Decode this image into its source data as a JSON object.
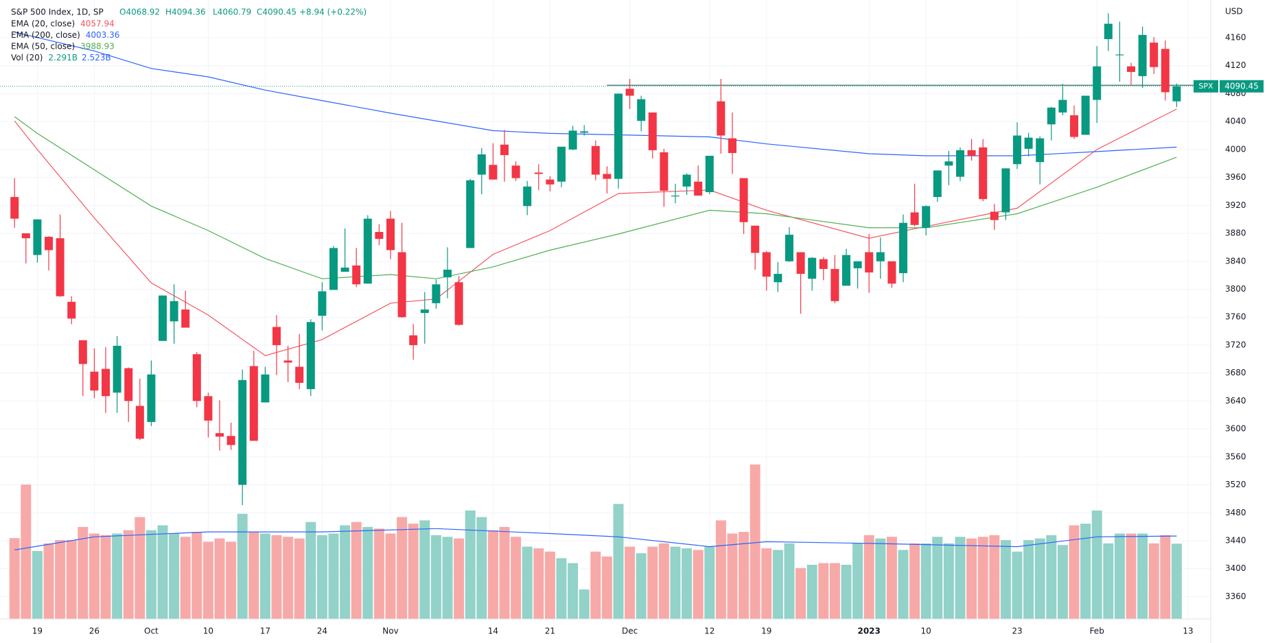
{
  "chart_data": {
    "type": "candlestick",
    "title": "S&P 500 Index, 1D, SP",
    "header_labels": [
      "O4068.92",
      "H4094.36",
      "L4060.79",
      "C4090.45",
      "+8.94 (+0.22%)"
    ],
    "currency": "USD",
    "symbol": "SPX",
    "up_color": "#089981",
    "down_color": "#f23645",
    "up_volume_color": "#92d2c8",
    "down_volume_color": "#f7a9a8",
    "grid": true,
    "ylim": [
      3328,
      4214
    ],
    "yticks": [
      3360,
      3400,
      3440,
      3480,
      3520,
      3560,
      3600,
      3640,
      3680,
      3720,
      3760,
      3800,
      3840,
      3880,
      3920,
      3960,
      4000,
      4040,
      4080,
      4120,
      4160
    ],
    "categories": [
      "Sep 15",
      "Sep 16",
      "Sep 19",
      "Sep 20",
      "Sep 21",
      "Sep 22",
      "Sep 23",
      "Sep 26",
      "Sep 27",
      "Sep 28",
      "Sep 29",
      "Sep 30",
      "Oct 3",
      "Oct 4",
      "Oct 5",
      "Oct 6",
      "Oct 7",
      "Oct 10",
      "Oct 11",
      "Oct 12",
      "Oct 13",
      "Oct 14",
      "Oct 17",
      "Oct 18",
      "Oct 19",
      "Oct 20",
      "Oct 21",
      "Oct 24",
      "Oct 25",
      "Oct 26",
      "Oct 27",
      "Oct 28",
      "Oct 31",
      "Nov 1",
      "Nov 2",
      "Nov 3",
      "Nov 4",
      "Nov 7",
      "Nov 8",
      "Nov 9",
      "Nov 10",
      "Nov 11",
      "Nov 14",
      "Nov 15",
      "Nov 16",
      "Nov 17",
      "Nov 18",
      "Nov 21",
      "Nov 22",
      "Nov 23",
      "Nov 25",
      "Nov 28",
      "Nov 29",
      "Nov 30",
      "Dec 1",
      "Dec 2",
      "Dec 5",
      "Dec 6",
      "Dec 7",
      "Dec 8",
      "Dec 9",
      "Dec 12",
      "Dec 13",
      "Dec 14",
      "Dec 15",
      "Dec 16",
      "Dec 19",
      "Dec 20",
      "Dec 21",
      "Dec 22",
      "Dec 23",
      "Dec 27",
      "Dec 28",
      "Dec 29",
      "Dec 30",
      "Jan 3",
      "Jan 4",
      "Jan 5",
      "Jan 6",
      "Jan 9",
      "Jan 10",
      "Jan 11",
      "Jan 12",
      "Jan 13",
      "Jan 17",
      "Jan 18",
      "Jan 19",
      "Jan 20",
      "Jan 23",
      "Jan 24",
      "Jan 25",
      "Jan 26",
      "Jan 27",
      "Jan 30",
      "Jan 31",
      "Feb 1",
      "Feb 2",
      "Feb 3",
      "Feb 6",
      "Feb 7",
      "Feb 8",
      "Feb 9",
      "Feb 10"
    ],
    "candles": [
      [
        3932,
        3959,
        3888,
        3901
      ],
      [
        3880,
        3880,
        3837,
        3873
      ],
      [
        3849,
        3900,
        3838,
        3900
      ],
      [
        3875,
        3876,
        3827,
        3856
      ],
      [
        3873,
        3907,
        3789,
        3790
      ],
      [
        3782,
        3790,
        3750,
        3758
      ],
      [
        3727,
        3727,
        3647,
        3693
      ],
      [
        3682,
        3715,
        3644,
        3655
      ],
      [
        3686,
        3717,
        3623,
        3647
      ],
      [
        3652,
        3733,
        3623,
        3719
      ],
      [
        3687,
        3688,
        3610,
        3640
      ],
      [
        3633,
        3672,
        3584,
        3586
      ],
      [
        3610,
        3698,
        3604,
        3678
      ],
      [
        3726,
        3791,
        3726,
        3791
      ],
      [
        3754,
        3807,
        3722,
        3783
      ],
      [
        3771,
        3798,
        3745,
        3745
      ],
      [
        3707,
        3710,
        3631,
        3640
      ],
      [
        3647,
        3652,
        3588,
        3612
      ],
      [
        3594,
        3641,
        3569,
        3589
      ],
      [
        3590,
        3609,
        3570,
        3577
      ],
      [
        3520,
        3685,
        3491,
        3670
      ],
      [
        3690,
        3712,
        3583,
        3583
      ],
      [
        3638,
        3689,
        3638,
        3678
      ],
      [
        3746,
        3763,
        3677,
        3720
      ],
      [
        3698,
        3719,
        3667,
        3695
      ],
      [
        3689,
        3736,
        3657,
        3666
      ],
      [
        3657,
        3757,
        3647,
        3753
      ],
      [
        3762,
        3810,
        3741,
        3797
      ],
      [
        3799,
        3862,
        3799,
        3859
      ],
      [
        3825,
        3887,
        3825,
        3831
      ],
      [
        3834,
        3859,
        3803,
        3807
      ],
      [
        3808,
        3906,
        3808,
        3901
      ],
      [
        3882,
        3893,
        3863,
        3872
      ],
      [
        3901,
        3912,
        3843,
        3856
      ],
      [
        3853,
        3895,
        3759,
        3760
      ],
      [
        3734,
        3750,
        3699,
        3720
      ],
      [
        3766,
        3796,
        3722,
        3771
      ],
      [
        3780,
        3814,
        3772,
        3807
      ],
      [
        3817,
        3860,
        3787,
        3828
      ],
      [
        3810,
        3819,
        3748,
        3749
      ],
      [
        3859,
        3958,
        3859,
        3956
      ],
      [
        3964,
        4002,
        3936,
        3993
      ],
      [
        3978,
        4009,
        3957,
        3957
      ],
      [
        4007,
        4028,
        3954,
        3992
      ],
      [
        3977,
        3983,
        3955,
        3959
      ],
      [
        3919,
        3955,
        3906,
        3947
      ],
      [
        3967,
        3979,
        3942,
        3965
      ],
      [
        3957,
        3962,
        3940,
        3950
      ],
      [
        3954,
        4003,
        3946,
        4004
      ],
      [
        4000,
        4034,
        3999,
        4027
      ],
      [
        4024,
        4035,
        4020,
        4026
      ],
      [
        4005,
        4013,
        3956,
        3964
      ],
      [
        3965,
        3976,
        3937,
        3958
      ],
      [
        3958,
        4080,
        3944,
        4080
      ],
      [
        4087,
        4101,
        4058,
        4077
      ],
      [
        4041,
        4077,
        4026,
        4072
      ],
      [
        4053,
        4053,
        3987,
        3999
      ],
      [
        3996,
        4001,
        3918,
        3941
      ],
      [
        3934,
        3951,
        3923,
        3934
      ],
      [
        3947,
        3966,
        3935,
        3964
      ],
      [
        3954,
        3977,
        3934,
        3934
      ],
      [
        3939,
        3991,
        3936,
        3991
      ],
      [
        4069,
        4101,
        3994,
        4020
      ],
      [
        4016,
        4053,
        3965,
        3995
      ],
      [
        3959,
        3959,
        3879,
        3896
      ],
      [
        3891,
        3891,
        3828,
        3852
      ],
      [
        3853,
        3855,
        3798,
        3818
      ],
      [
        3810,
        3839,
        3796,
        3822
      ],
      [
        3840,
        3889,
        3839,
        3878
      ],
      [
        3853,
        3853,
        3765,
        3822
      ],
      [
        3815,
        3846,
        3798,
        3845
      ],
      [
        3843,
        3846,
        3813,
        3829
      ],
      [
        3829,
        3849,
        3780,
        3783
      ],
      [
        3805,
        3858,
        3805,
        3849
      ],
      [
        3830,
        3840,
        3801,
        3840
      ],
      [
        3853,
        3879,
        3795,
        3824
      ],
      [
        3840,
        3874,
        3815,
        3853
      ],
      [
        3840,
        3840,
        3802,
        3808
      ],
      [
        3823,
        3907,
        3810,
        3895
      ],
      [
        3910,
        3951,
        3890,
        3892
      ],
      [
        3888,
        3920,
        3877,
        3919
      ],
      [
        3932,
        3970,
        3925,
        3970
      ],
      [
        3977,
        3998,
        3949,
        3983
      ],
      [
        3961,
        4003,
        3955,
        3999
      ],
      [
        3999,
        4015,
        3984,
        3991
      ],
      [
        4003,
        4015,
        3926,
        3929
      ],
      [
        3911,
        3922,
        3885,
        3899
      ],
      [
        3910,
        3973,
        3899,
        3973
      ],
      [
        3979,
        4039,
        3972,
        4020
      ],
      [
        4001,
        4024,
        3990,
        4017
      ],
      [
        3982,
        4019,
        3950,
        4016
      ],
      [
        4036,
        4061,
        4013,
        4060
      ],
      [
        4053,
        4094,
        4049,
        4071
      ],
      [
        4049,
        4063,
        4015,
        4018
      ],
      [
        4021,
        4077,
        4021,
        4077
      ],
      [
        4071,
        4148,
        4038,
        4119
      ],
      [
        4158,
        4195,
        4141,
        4180
      ],
      [
        4136,
        4183,
        4097,
        4136
      ],
      [
        4119,
        4124,
        4093,
        4111
      ],
      [
        4105,
        4176,
        4088,
        4164
      ],
      [
        4153,
        4161,
        4108,
        4118
      ],
      [
        4144,
        4156,
        4070,
        4082
      ],
      [
        4068.92,
        4094.36,
        4060.79,
        4090.45
      ]
    ],
    "volume": [
      2.46,
      4.09,
      2.07,
      2.3,
      2.4,
      2.4,
      2.8,
      2.6,
      2.55,
      2.6,
      2.7,
      3.1,
      2.7,
      2.85,
      2.6,
      2.5,
      2.65,
      2.35,
      2.45,
      2.35,
      3.2,
      2.65,
      2.6,
      2.55,
      2.5,
      2.45,
      2.95,
      2.55,
      2.6,
      2.85,
      2.95,
      2.8,
      2.75,
      2.6,
      3.1,
      2.9,
      3.0,
      2.55,
      2.5,
      2.45,
      3.3,
      3.1,
      2.7,
      2.8,
      2.5,
      2.2,
      2.15,
      2.05,
      1.85,
      1.7,
      0.9,
      2.05,
      1.9,
      3.5,
      2.2,
      2.0,
      2.2,
      2.3,
      2.2,
      2.15,
      2.1,
      2.2,
      3.0,
      2.6,
      2.65,
      4.7,
      2.15,
      2.1,
      2.3,
      1.55,
      1.65,
      1.7,
      1.7,
      1.65,
      2.3,
      2.55,
      2.45,
      2.5,
      2.1,
      2.3,
      2.3,
      2.5,
      2.3,
      2.5,
      2.45,
      2.5,
      2.55,
      2.4,
      2.05,
      2.4,
      2.45,
      2.55,
      2.25,
      2.85,
      2.9,
      3.3,
      2.3,
      2.6,
      2.6,
      2.6,
      2.3,
      2.55,
      2.291
    ],
    "indicators": [
      {
        "name": "EMA (20, close)",
        "color": "#f7525f",
        "dates": [
          "Sep 15",
          "Sep 19",
          "Sep 26",
          "Oct 3",
          "Oct 10",
          "Oct 17",
          "Oct 24",
          "Nov 1",
          "Nov 7",
          "Nov 14",
          "Nov 21",
          "Nov 30",
          "Dec 12",
          "Dec 19",
          "Jan 3",
          "Jan 10",
          "Jan 23",
          "Feb 1",
          "Feb 10"
        ],
        "values": [
          4041,
          4000,
          3902,
          3809,
          3763,
          3705,
          3728,
          3780,
          3786,
          3850,
          3884,
          3937,
          3942,
          3913,
          3873,
          3890,
          3916,
          4000,
          4057.94
        ]
      },
      {
        "name": "EMA (200, close)",
        "color": "#2962ff",
        "dates": [
          "Sep 15",
          "Sep 26",
          "Oct 3",
          "Oct 10",
          "Oct 17",
          "Oct 24",
          "Nov 1",
          "Nov 14",
          "Nov 21",
          "Nov 30",
          "Dec 12",
          "Dec 19",
          "Jan 3",
          "Jan 10",
          "Jan 23",
          "Feb 1",
          "Feb 10"
        ],
        "values": [
          4168,
          4141,
          4116,
          4104,
          4085,
          4070,
          4052,
          4027,
          4023,
          4021,
          4018,
          4008,
          3994,
          3991,
          3991,
          3997,
          4003.36
        ]
      },
      {
        "name": "EMA (50, close)",
        "color": "#4caf50",
        "dates": [
          "Sep 15",
          "Sep 19",
          "Sep 26",
          "Oct 3",
          "Oct 10",
          "Oct 17",
          "Oct 24",
          "Nov 1",
          "Nov 7",
          "Nov 14",
          "Nov 21",
          "Nov 30",
          "Dec 12",
          "Dec 19",
          "Jan 3",
          "Jan 10",
          "Jan 23",
          "Feb 1",
          "Feb 10"
        ],
        "values": [
          4047,
          4023,
          3971,
          3919,
          3884,
          3844,
          3815,
          3821,
          3815,
          3832,
          3856,
          3879,
          3913,
          3908,
          3888,
          3888,
          3908,
          3946,
          3988.93
        ]
      }
    ],
    "volume_legend": {
      "name": "Vol (20)",
      "value_labels": [
        "2.291B",
        "2.523B"
      ]
    },
    "volume_ma": {
      "color": "#2962ff",
      "dates": [
        "Sep 15",
        "Sep 26",
        "Oct 10",
        "Oct 24",
        "Nov 7",
        "Nov 21",
        "Nov 30",
        "Dec 12",
        "Dec 19",
        "Jan 3",
        "Jan 23",
        "Feb 1",
        "Feb 10"
      ],
      "values": [
        2.1,
        2.5,
        2.65,
        2.65,
        2.75,
        2.6,
        2.5,
        2.2,
        2.35,
        2.3,
        2.2,
        2.5,
        2.523
      ]
    },
    "hlines": [
      {
        "from": "Nov 29",
        "value": 4092,
        "color": "#1b5e5c"
      }
    ],
    "xticks": [
      {
        "value": "Sep 19",
        "label": "19"
      },
      {
        "value": "Sep 26",
        "label": "26"
      },
      {
        "value": "Oct 3",
        "label": "Oct"
      },
      {
        "value": "Oct 10",
        "label": "10"
      },
      {
        "value": "Oct 17",
        "label": "17"
      },
      {
        "value": "Oct 24",
        "label": "24"
      },
      {
        "value": "Nov 1",
        "label": "Nov"
      },
      {
        "value": "Nov 14",
        "label": "14"
      },
      {
        "value": "Nov 21",
        "label": "21"
      },
      {
        "value": "Dec 1",
        "label": "Dec"
      },
      {
        "value": "Dec 12",
        "label": "12"
      },
      {
        "value": "Dec 19",
        "label": "19"
      },
      {
        "value": "Jan 3",
        "label": "2023"
      },
      {
        "value": "Jan 10",
        "label": "10"
      },
      {
        "value": "Jan 23",
        "label": "23"
      },
      {
        "value": "Feb 1",
        "label": "Feb"
      },
      {
        "value": "Feb 13",
        "label": "13"
      }
    ]
  }
}
